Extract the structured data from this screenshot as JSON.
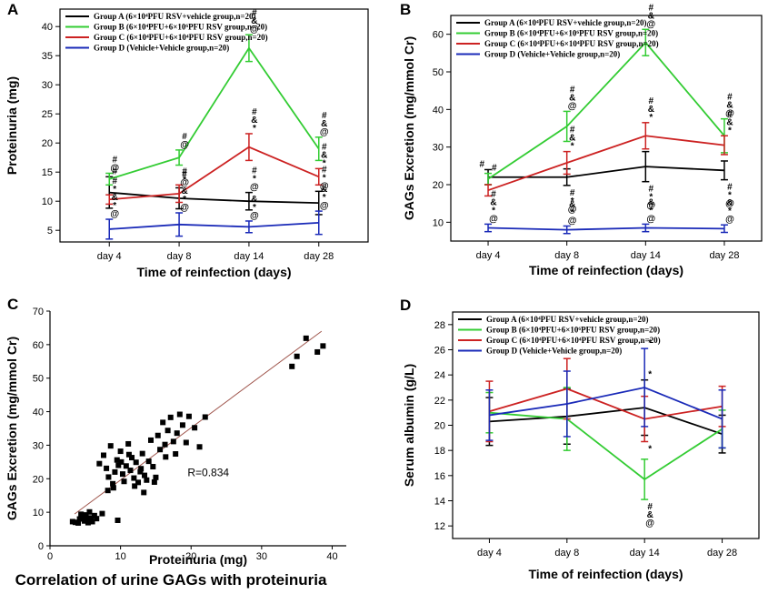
{
  "chart_data": [
    {
      "panel": "A",
      "type": "line",
      "error_bars": true,
      "xlabel": "Time of reinfection (days)",
      "ylabel": "Proteinuria (mg)",
      "categories": [
        "day 4",
        "day 8",
        "day 14",
        "day 28"
      ],
      "ylim": [
        3,
        43
      ],
      "yticks": [
        5,
        10,
        15,
        20,
        25,
        30,
        35,
        40
      ],
      "legend": "top-left",
      "series": [
        {
          "name": "Group A (6×10⁴PFU RSV+vehicle group,n=20)",
          "color": "#000000",
          "values": [
            11.5,
            10.5,
            10.0,
            9.7
          ],
          "errors": [
            2.7,
            1.8,
            1.5,
            2.0
          ]
        },
        {
          "name": "Group B (6×10⁴PFU+6×10⁶PFU RSV group,n=20)",
          "color": "#33cc33",
          "values": [
            13.8,
            17.5,
            36.3,
            19.0
          ],
          "errors": [
            1.0,
            1.3,
            2.3,
            2.0
          ]
        },
        {
          "name": "Group C (6×10⁴PFU+6×10⁴PFU RSV group,n=20)",
          "color": "#cc2222",
          "values": [
            10.3,
            11.3,
            19.3,
            14.2
          ],
          "errors": [
            0.8,
            1.5,
            2.3,
            1.4
          ]
        },
        {
          "name": "Group D (Vehicle+Vehicle group,n=20)",
          "color": "#1a2ab8",
          "values": [
            5.2,
            6.0,
            5.6,
            6.3
          ],
          "errors": [
            1.7,
            2.0,
            1.0,
            2.0
          ]
        }
      ],
      "annotations": [
        {
          "x": 0,
          "series": 0,
          "pos": "above",
          "text": [
            "#"
          ]
        },
        {
          "x": 0,
          "series": 1,
          "pos": "above",
          "text": [
            "#",
            "@"
          ]
        },
        {
          "x": 0,
          "series": 2,
          "pos": "above",
          "text": [
            "#",
            "*"
          ]
        },
        {
          "x": 0,
          "series": 3,
          "pos": "above",
          "text": [
            "&",
            "*",
            "@"
          ]
        },
        {
          "x": 1,
          "series": 0,
          "pos": "above",
          "text": [
            "#",
            "@"
          ]
        },
        {
          "x": 1,
          "series": 1,
          "pos": "above",
          "text": [
            "#",
            "@"
          ]
        },
        {
          "x": 1,
          "series": 2,
          "pos": "above",
          "text": [
            "#",
            "*"
          ]
        },
        {
          "x": 1,
          "series": 3,
          "pos": "above",
          "text": [
            "&",
            "*",
            "@"
          ]
        },
        {
          "x": 2,
          "series": 0,
          "pos": "above",
          "text": [
            "#",
            "*",
            "@"
          ]
        },
        {
          "x": 2,
          "series": 1,
          "pos": "above",
          "text": [
            "#",
            "&",
            "@"
          ]
        },
        {
          "x": 2,
          "series": 2,
          "pos": "above",
          "text": [
            "#",
            "&",
            "*"
          ]
        },
        {
          "x": 2,
          "series": 3,
          "pos": "above",
          "text": [
            "&",
            "*",
            "@"
          ]
        },
        {
          "x": 3,
          "series": 0,
          "pos": "above",
          "text": [
            "#",
            "*",
            "@"
          ]
        },
        {
          "x": 3,
          "series": 1,
          "pos": "above",
          "text": [
            "#",
            "&",
            "@"
          ]
        },
        {
          "x": 3,
          "series": 2,
          "pos": "above",
          "text": [
            "#",
            "&",
            "*"
          ]
        },
        {
          "x": 3,
          "series": 3,
          "pos": "above",
          "text": [
            "&",
            "*",
            "@"
          ]
        }
      ]
    },
    {
      "panel": "B",
      "type": "line",
      "error_bars": true,
      "xlabel": "Time of reinfection (days)",
      "ylabel": "GAGs Excretion (mg/mmol Cr)",
      "categories": [
        "day 4",
        "day 8",
        "day 14",
        "day 28"
      ],
      "ylim": [
        5,
        65
      ],
      "yticks": [
        10,
        20,
        30,
        40,
        50,
        60
      ],
      "legend": "top-left",
      "series": [
        {
          "name": "Group A (6×10⁴PFU RSV+vehicle group,n=20)",
          "color": "#000000",
          "values": [
            22.0,
            22.0,
            24.8,
            23.8
          ],
          "errors": [
            2.0,
            2.2,
            4.0,
            2.5
          ]
        },
        {
          "name": "Group B (6×10⁴PFU+6×10⁶PFU RSV group,n=20)",
          "color": "#33cc33",
          "values": [
            21.5,
            35.5,
            57.8,
            33.0
          ],
          "errors": [
            1.5,
            4.0,
            3.5,
            4.5
          ]
        },
        {
          "name": "Group C (6×10⁴PFU+6×10⁴PFU RSV group,n=20)",
          "color": "#cc2222",
          "values": [
            18.5,
            25.8,
            33.0,
            30.5
          ],
          "errors": [
            1.5,
            3.0,
            3.5,
            2.5
          ]
        },
        {
          "name": "Group D (Vehicle+Vehicle group,n=20)",
          "color": "#1a2ab8",
          "values": [
            8.5,
            8.0,
            8.5,
            8.3
          ],
          "errors": [
            1.0,
            1.0,
            1.0,
            1.0
          ]
        }
      ],
      "annotations": [
        {
          "x": 0,
          "series": 0,
          "pos": "left",
          "text": [
            "#"
          ]
        },
        {
          "x": 0,
          "series": 1,
          "pos": "right",
          "text": [
            "#"
          ]
        },
        {
          "x": 0,
          "series": 3,
          "pos": "above",
          "text": [
            "#",
            "&",
            "*",
            "@"
          ]
        },
        {
          "x": 1,
          "series": 0,
          "pos": "below",
          "text": [
            "#",
            "*",
            "@"
          ]
        },
        {
          "x": 1,
          "series": 1,
          "pos": "above",
          "text": [
            "#",
            "&",
            "@"
          ]
        },
        {
          "x": 1,
          "series": 2,
          "pos": "above",
          "text": [
            "#",
            "&",
            "*"
          ]
        },
        {
          "x": 1,
          "series": 3,
          "pos": "above",
          "text": [
            "&",
            "*",
            "@"
          ]
        },
        {
          "x": 2,
          "series": 0,
          "pos": "below",
          "text": [
            "#",
            "*",
            "@"
          ]
        },
        {
          "x": 2,
          "series": 1,
          "pos": "above",
          "text": [
            "#",
            "&",
            "@"
          ]
        },
        {
          "x": 2,
          "series": 2,
          "pos": "above",
          "text": [
            "#",
            "&",
            "*"
          ]
        },
        {
          "x": 2,
          "series": 3,
          "pos": "above",
          "text": [
            "&",
            "*",
            "@"
          ]
        },
        {
          "x": 3,
          "series": 0,
          "pos": "below",
          "text": [
            "#",
            "*",
            "@"
          ]
        },
        {
          "x": 3,
          "series": 1,
          "pos": "above",
          "text": [
            "#",
            "&",
            "@"
          ]
        },
        {
          "x": 3,
          "series": 2,
          "pos": "above",
          "text": [
            "#",
            "&",
            "*"
          ]
        },
        {
          "x": 3,
          "series": 3,
          "pos": "above",
          "text": [
            "&",
            "*",
            "@"
          ]
        }
      ]
    },
    {
      "panel": "C",
      "type": "scatter",
      "title": "Correlation of urine GAGs with proteinuria",
      "xlabel": "Proteinuria (mg)",
      "ylabel": "GAGs Excretion (mg/mmol Cr)",
      "xlim": [
        0,
        42
      ],
      "ylim": [
        0,
        70
      ],
      "xticks": [
        0,
        10,
        20,
        30,
        40
      ],
      "yticks": [
        0,
        10,
        20,
        30,
        40,
        50,
        60,
        70
      ],
      "annotation": "R=0.834",
      "fit_line": {
        "x": [
          3.5,
          38.5
        ],
        "y": [
          9.5,
          64.0
        ]
      },
      "points": [
        [
          3.2,
          7.2
        ],
        [
          3.6,
          7.0
        ],
        [
          4.0,
          6.8
        ],
        [
          4.2,
          8.0
        ],
        [
          4.6,
          8.6
        ],
        [
          4.9,
          7.4
        ],
        [
          5.1,
          9.2
        ],
        [
          5.3,
          7.9
        ],
        [
          5.6,
          10.1
        ],
        [
          5.8,
          8.3
        ],
        [
          6.0,
          7.2
        ],
        [
          6.3,
          9.0
        ],
        [
          6.6,
          8.1
        ],
        [
          4.4,
          9.4
        ],
        [
          5.4,
          6.9
        ],
        [
          7.0,
          24.5
        ],
        [
          7.6,
          27.0
        ],
        [
          8.0,
          23.1
        ],
        [
          8.3,
          20.5
        ],
        [
          8.6,
          29.8
        ],
        [
          8.9,
          18.5
        ],
        [
          9.2,
          22.0
        ],
        [
          9.5,
          25.6
        ],
        [
          9.7,
          24.0
        ],
        [
          10.0,
          28.2
        ],
        [
          10.3,
          21.4
        ],
        [
          10.5,
          19.2
        ],
        [
          10.8,
          23.8
        ],
        [
          11.1,
          30.4
        ],
        [
          11.4,
          22.5
        ],
        [
          11.6,
          26.3
        ],
        [
          11.9,
          20.2
        ],
        [
          12.2,
          24.9
        ],
        [
          12.5,
          18.9
        ],
        [
          12.8,
          22.1
        ],
        [
          13.1,
          27.5
        ],
        [
          13.4,
          21.0
        ],
        [
          13.7,
          19.6
        ],
        [
          14.0,
          25.2
        ],
        [
          14.3,
          31.5
        ],
        [
          14.6,
          23.6
        ],
        [
          15.0,
          20.4
        ],
        [
          15.3,
          32.9
        ],
        [
          15.6,
          28.7
        ],
        [
          16.0,
          36.8
        ],
        [
          16.3,
          30.2
        ],
        [
          16.7,
          34.4
        ],
        [
          17.1,
          38.3
        ],
        [
          17.5,
          31.1
        ],
        [
          18.0,
          33.6
        ],
        [
          18.4,
          39.2
        ],
        [
          18.8,
          36.0
        ],
        [
          19.3,
          30.8
        ],
        [
          19.7,
          38.6
        ],
        [
          8.2,
          16.5
        ],
        [
          9.0,
          17.3
        ],
        [
          12.0,
          17.8
        ],
        [
          13.3,
          15.9
        ],
        [
          14.8,
          19.0
        ],
        [
          16.4,
          26.5
        ],
        [
          17.8,
          27.4
        ],
        [
          20.5,
          35.2
        ],
        [
          21.2,
          29.5
        ],
        [
          22.0,
          38.4
        ],
        [
          10.1,
          25.0
        ],
        [
          11.2,
          27.2
        ],
        [
          12.9,
          23.0
        ],
        [
          7.4,
          9.6
        ],
        [
          9.6,
          7.6
        ],
        [
          34.3,
          53.5
        ],
        [
          35.0,
          56.5
        ],
        [
          36.3,
          61.9
        ],
        [
          37.9,
          57.8
        ],
        [
          38.7,
          59.6
        ]
      ]
    },
    {
      "panel": "D",
      "type": "line",
      "error_bars": true,
      "xlabel": "Time of reinfection (days)",
      "ylabel": "Serum albumin (g/L)",
      "categories": [
        "day 4",
        "day 8",
        "day 14",
        "day 28"
      ],
      "ylim": [
        11,
        29
      ],
      "yticks": [
        12,
        14,
        16,
        18,
        20,
        22,
        24,
        26,
        28
      ],
      "legend": "top-left",
      "series": [
        {
          "name": "Group A (6×10⁴PFU RSV+vehicle group,n=20)",
          "color": "#000000",
          "values": [
            20.3,
            20.7,
            21.4,
            19.3
          ],
          "errors": [
            1.9,
            2.2,
            2.2,
            1.5
          ]
        },
        {
          "name": "Group B (6×10⁴PFU+6×10⁶PFU RSV group,n=20)",
          "color": "#33cc33",
          "values": [
            21.0,
            20.5,
            15.7,
            19.7
          ],
          "errors": [
            1.6,
            2.5,
            1.6,
            1.5
          ]
        },
        {
          "name": "Group C (6×10⁴PFU+6×10⁴PFU RSV group,n=20)",
          "color": "#cc2222",
          "values": [
            21.1,
            22.9,
            20.5,
            21.5
          ],
          "errors": [
            2.4,
            2.4,
            1.8,
            1.6
          ]
        },
        {
          "name": "Group D (Vehicle+Vehicle group,n=20)",
          "color": "#1a2ab8",
          "values": [
            20.8,
            21.7,
            23.0,
            20.5
          ],
          "errors": [
            2.0,
            2.6,
            3.1,
            2.3
          ]
        }
      ],
      "annotations": [
        {
          "x": 2,
          "series": 0,
          "pos": "above",
          "text": [
            "*"
          ]
        },
        {
          "x": 2,
          "series": 3,
          "pos": "above",
          "text": [
            "*"
          ]
        },
        {
          "x": 2,
          "series": 2,
          "pos": "below",
          "text": [
            "*"
          ]
        },
        {
          "x": 2,
          "series": 1,
          "pos": "below",
          "text": [
            "#",
            "&",
            "@"
          ]
        }
      ]
    }
  ]
}
